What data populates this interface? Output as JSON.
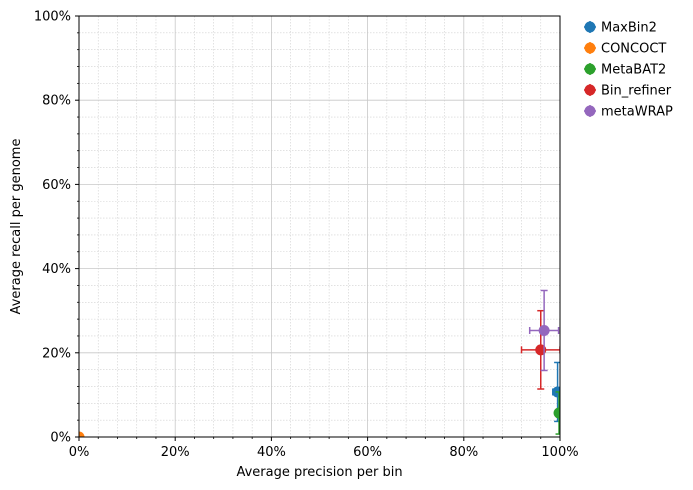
{
  "chart_data": {
    "type": "scatter",
    "xlabel": "Average precision per bin",
    "ylabel": "Average recall per genome",
    "xlim": [
      0,
      1
    ],
    "ylim": [
      0,
      1
    ],
    "x_ticks": [
      "0%",
      "20%",
      "40%",
      "60%",
      "80%",
      "100%"
    ],
    "y_ticks": [
      "0%",
      "20%",
      "40%",
      "60%",
      "80%",
      "100%"
    ],
    "grid": "major and minor",
    "legend_position": "outside top-right",
    "series": [
      {
        "name": "MaxBin2",
        "color": "#1f77b4",
        "x": 0.995,
        "y": 0.107,
        "xerr": 0.01,
        "yerr": 0.07
      },
      {
        "name": "CONCOCT",
        "color": "#ff7f0e",
        "x": 0.0,
        "y": 0.0,
        "xerr": 0.0,
        "yerr": 0.0
      },
      {
        "name": "MetaBAT2",
        "color": "#2ca02c",
        "x": 0.998,
        "y": 0.057,
        "xerr": 0.005,
        "yerr": 0.05
      },
      {
        "name": "Bin_refiner",
        "color": "#d62728",
        "x": 0.96,
        "y": 0.207,
        "xerr": 0.04,
        "yerr": 0.093
      },
      {
        "name": "metaWRAP",
        "color": "#9467bd",
        "x": 0.967,
        "y": 0.253,
        "xerr": 0.03,
        "yerr": 0.095
      }
    ]
  }
}
